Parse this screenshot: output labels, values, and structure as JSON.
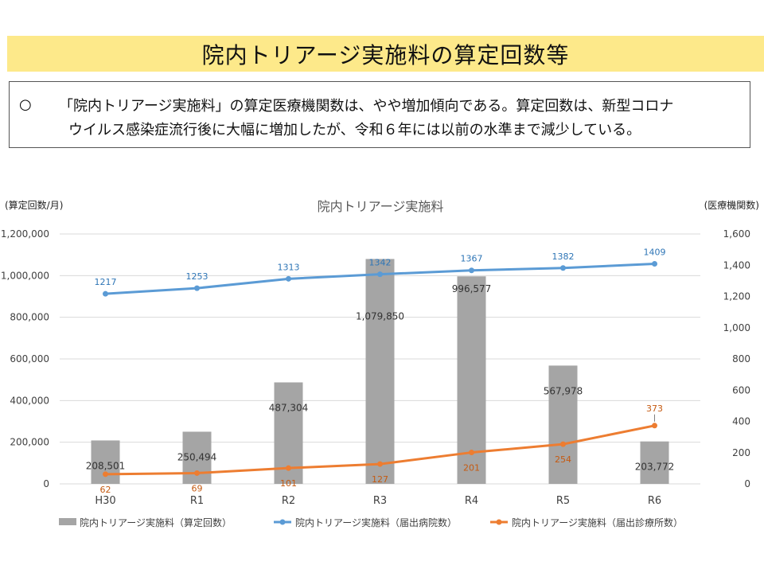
{
  "page": {
    "title": "院内トリアージ実施料の算定回数等",
    "summary_bullet": "○",
    "summary_line1": "「院内トリアージ実施料」の算定医療機関数は、やや増加傾向である。算定回数は、新型コロナ",
    "summary_line2": "ウイルス感染症流行後に大幅に増加したが、令和６年には以前の水準まで減少している。"
  },
  "colors": {
    "bar": "#a5a5a5",
    "hospitals_line": "#5b9bd5",
    "clinics_line": "#ed7d31",
    "hospital_label": "#2e75b6",
    "clinic_label": "#c55a11",
    "grid": "#d9d9d9",
    "title_bg": "#fde98a"
  },
  "chart_data": {
    "type": "bar",
    "title": "院内トリアージ実施料",
    "y_left_label": "(算定回数/月)",
    "y_right_label": "(医療機関数)",
    "categories": [
      "H30",
      "R1",
      "R2",
      "R3",
      "R4",
      "R5",
      "R6"
    ],
    "y_left_ticks": [
      "0",
      "200,000",
      "400,000",
      "600,000",
      "800,000",
      "1,000,000",
      "1,200,000"
    ],
    "y_right_ticks": [
      "0",
      "200",
      "400",
      "600",
      "800",
      "1,000",
      "1,200",
      "1,400",
      "1,600"
    ],
    "ylim_left": [
      0,
      1200000
    ],
    "ylim_right": [
      0,
      1600
    ],
    "grid": true,
    "legend_position": "bottom",
    "series": [
      {
        "name": "院内トリアージ実施料（算定回数）",
        "kind": "bar",
        "axis": "left",
        "values": [
          208501,
          250494,
          487304,
          1079850,
          996577,
          567978,
          203772
        ],
        "labels": [
          "208,501",
          "250,494",
          "487,304",
          "1,079,850",
          "996,577",
          "567,978",
          "203,772"
        ]
      },
      {
        "name": "院内トリアージ実施料（届出病院数）",
        "kind": "line",
        "axis": "right",
        "values": [
          1217,
          1253,
          1313,
          1342,
          1367,
          1382,
          1409
        ],
        "labels": [
          "1217",
          "1253",
          "1313",
          "1342",
          "1367",
          "1382",
          "1409"
        ]
      },
      {
        "name": "院内トリアージ実施料（届出診療所数）",
        "kind": "line",
        "axis": "right",
        "values": [
          62,
          69,
          101,
          127,
          201,
          254,
          373
        ],
        "labels": [
          "62",
          "69",
          "101",
          "127",
          "201",
          "254",
          "373"
        ]
      }
    ]
  }
}
